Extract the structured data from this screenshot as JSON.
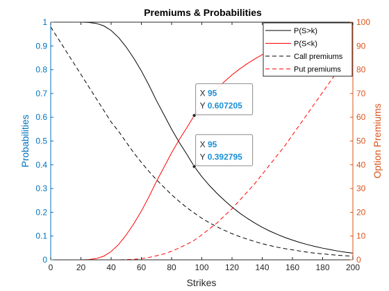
{
  "chart_data": {
    "type": "line",
    "title": "Premiums & Probabilities",
    "xlabel": "Strikes",
    "ylabel_left": "Probabilities",
    "ylabel_right": "Option Premiums",
    "xlim": [
      0,
      200
    ],
    "ylim_left": [
      0,
      1
    ],
    "ylim_right": [
      0,
      100
    ],
    "x_ticks": [
      0,
      20,
      40,
      60,
      80,
      100,
      120,
      140,
      160,
      180,
      200
    ],
    "y_left_ticks": [
      0,
      0.1,
      0.2,
      0.3,
      0.4,
      0.5,
      0.6,
      0.7,
      0.8,
      0.9,
      1
    ],
    "y_right_ticks": [
      0,
      10,
      20,
      30,
      40,
      50,
      60,
      70,
      80,
      90,
      100
    ],
    "grid": false,
    "legend_position": "top-right",
    "x": [
      0,
      10,
      20,
      25,
      30,
      35,
      40,
      45,
      50,
      55,
      60,
      65,
      70,
      75,
      80,
      85,
      90,
      95,
      100,
      105,
      110,
      115,
      120,
      125,
      130,
      135,
      140,
      145,
      150,
      155,
      160,
      165,
      170,
      175,
      180,
      185,
      190,
      195,
      200
    ],
    "series": [
      {
        "name": "P(S>k)",
        "axis": "left",
        "color": "#000000",
        "dash": "solid",
        "values": [
          1.0,
          1.0,
          1.0,
          0.999,
          0.995,
          0.985,
          0.965,
          0.935,
          0.895,
          0.848,
          0.795,
          0.735,
          0.67,
          0.61,
          0.55,
          0.495,
          0.445,
          0.393,
          0.35,
          0.313,
          0.28,
          0.25,
          0.222,
          0.197,
          0.175,
          0.155,
          0.137,
          0.121,
          0.107,
          0.094,
          0.083,
          0.073,
          0.064,
          0.056,
          0.049,
          0.043,
          0.037,
          0.032,
          0.028
        ]
      },
      {
        "name": "P(S<k)",
        "axis": "left",
        "color": "#ff0000",
        "dash": "solid",
        "values": [
          0.0,
          0.0,
          0.0,
          0.001,
          0.005,
          0.015,
          0.035,
          0.065,
          0.105,
          0.152,
          0.205,
          0.265,
          0.33,
          0.39,
          0.45,
          0.505,
          0.555,
          0.607,
          0.65,
          0.687,
          0.72,
          0.75,
          0.778,
          0.803,
          0.825,
          0.845,
          0.863,
          0.879,
          0.893,
          0.906,
          0.917,
          0.927,
          0.936,
          0.944,
          0.951,
          0.957,
          0.963,
          0.968,
          0.972
        ]
      },
      {
        "name": "Call premiums",
        "axis": "right",
        "color": "#000000",
        "dash": "dashed",
        "values": [
          98,
          88,
          78,
          73,
          68,
          63,
          58,
          54,
          49.5,
          45,
          41,
          37.2,
          33.7,
          30.5,
          27.4,
          24.6,
          22,
          19.7,
          17.5,
          15.6,
          13.9,
          12.4,
          11,
          9.8,
          8.7,
          7.7,
          6.8,
          6,
          5.3,
          4.7,
          4.2,
          3.7,
          3.2,
          2.8,
          2.5,
          2.2,
          1.9,
          1.7,
          1.5
        ]
      },
      {
        "name": "Put premiums",
        "axis": "right",
        "color": "#ff0000",
        "dash": "dashed",
        "values": [
          0,
          0,
          0,
          0,
          0,
          0,
          0,
          0,
          0.1,
          0.2,
          0.5,
          1,
          1.7,
          2.5,
          3.6,
          5,
          6.5,
          8.2,
          10.5,
          13,
          15.5,
          18.5,
          21.5,
          25,
          28.5,
          32,
          36,
          40,
          44,
          48,
          52.5,
          57,
          61.5,
          66,
          70.5,
          75,
          79.5,
          84,
          88.5
        ]
      }
    ],
    "datatips": [
      {
        "x": 95,
        "y": 0.607205,
        "x_label": "X",
        "y_label": "Y",
        "x_text": "95",
        "y_text": "0.607205"
      },
      {
        "x": 95,
        "y": 0.392795,
        "x_label": "X",
        "y_label": "Y",
        "x_text": "95",
        "y_text": "0.392795"
      }
    ],
    "colors": {
      "left_axis": "#0072bd",
      "right_axis": "#d95319",
      "datatip_value": "#1a8fd6"
    }
  }
}
